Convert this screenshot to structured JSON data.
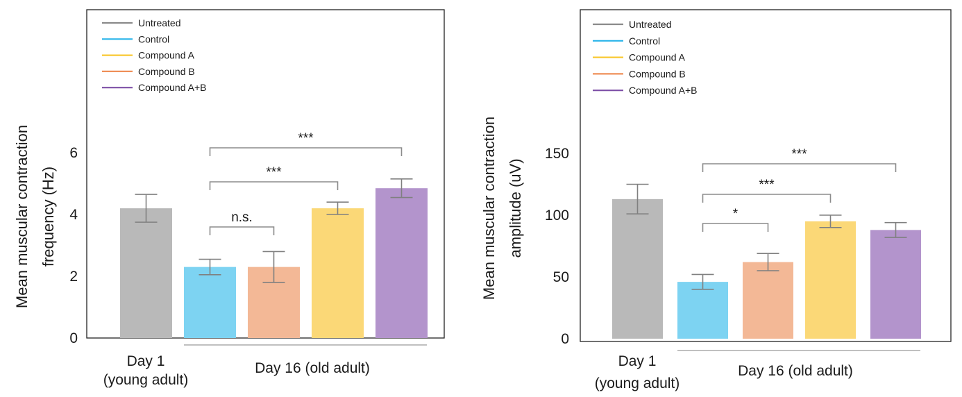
{
  "colors": {
    "Untreated": "#b9b9b9",
    "Control": "#7dd3f2",
    "Compound A": "#fbd877",
    "Compound B": "#f3b896",
    "Compound A+B": "#b394cc",
    "legend_lines": {
      "Untreated": "#8a8a8a",
      "Control": "#29b4ea",
      "Compound A": "#f9c832",
      "Compound B": "#ef8f58",
      "Compound A+B": "#7d4fa6"
    },
    "axis": "#222222",
    "error": "#808080",
    "bracket": "#8c8c8c"
  },
  "legend": [
    "Untreated",
    "Control",
    "Compound A",
    "Compound B",
    "Compound A+B"
  ],
  "groups": {
    "day1": [
      "Day 1",
      "(young adult)"
    ],
    "day16": "Day 16 (old adult)"
  },
  "chart_data": [
    {
      "type": "bar",
      "ylabel_lines": [
        "Mean muscular contraction",
        "frequency (Hz)"
      ],
      "ylim": [
        0,
        6
      ],
      "yticks": [
        0,
        2,
        4,
        6
      ],
      "categories": [
        "Untreated",
        "Control",
        "Compound B",
        "Compound A",
        "Compound A+B"
      ],
      "values": [
        4.2,
        2.3,
        2.3,
        4.2,
        4.85
      ],
      "errors": [
        0.45,
        0.25,
        0.5,
        0.2,
        0.3
      ],
      "significance": [
        {
          "from": 1,
          "to": 2,
          "label": "n.s."
        },
        {
          "from": 1,
          "to": 3,
          "label": "***"
        },
        {
          "from": 1,
          "to": 4,
          "label": "***"
        }
      ]
    },
    {
      "type": "bar",
      "ylabel_lines": [
        "Mean muscular contraction",
        "amplitude (uV)"
      ],
      "ylim": [
        0,
        150
      ],
      "yticks": [
        0,
        50,
        100,
        150
      ],
      "categories": [
        "Untreated",
        "Control",
        "Compound B",
        "Compound A",
        "Compound A+B"
      ],
      "values": [
        113,
        46,
        62,
        95,
        88
      ],
      "errors": [
        12,
        6,
        7,
        5,
        6
      ],
      "significance": [
        {
          "from": 1,
          "to": 2,
          "label": "*"
        },
        {
          "from": 1,
          "to": 3,
          "label": "***"
        },
        {
          "from": 1,
          "to": 4,
          "label": "***"
        }
      ]
    }
  ]
}
